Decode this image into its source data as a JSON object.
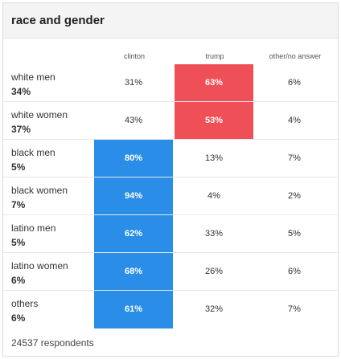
{
  "title": "race and gender",
  "columns": [
    "clinton",
    "trump",
    "other/no answer"
  ],
  "colors": {
    "clinton": "#2a8ee8",
    "trump": "#ef5057"
  },
  "rows": [
    {
      "group": "white men",
      "share": "34%",
      "clinton": "31%",
      "trump": "63%",
      "other": "6%",
      "winner": "trump"
    },
    {
      "group": "white women",
      "share": "37%",
      "clinton": "43%",
      "trump": "53%",
      "other": "4%",
      "winner": "trump"
    },
    {
      "group": "black men",
      "share": "5%",
      "clinton": "80%",
      "trump": "13%",
      "other": "7%",
      "winner": "clinton"
    },
    {
      "group": "black women",
      "share": "7%",
      "clinton": "94%",
      "trump": "4%",
      "other": "2%",
      "winner": "clinton"
    },
    {
      "group": "latino men",
      "share": "5%",
      "clinton": "62%",
      "trump": "33%",
      "other": "5%",
      "winner": "clinton"
    },
    {
      "group": "latino women",
      "share": "6%",
      "clinton": "68%",
      "trump": "26%",
      "other": "6%",
      "winner": "clinton"
    },
    {
      "group": "others",
      "share": "6%",
      "clinton": "61%",
      "trump": "32%",
      "other": "7%",
      "winner": "clinton"
    }
  ],
  "footer": "24537 respondents"
}
